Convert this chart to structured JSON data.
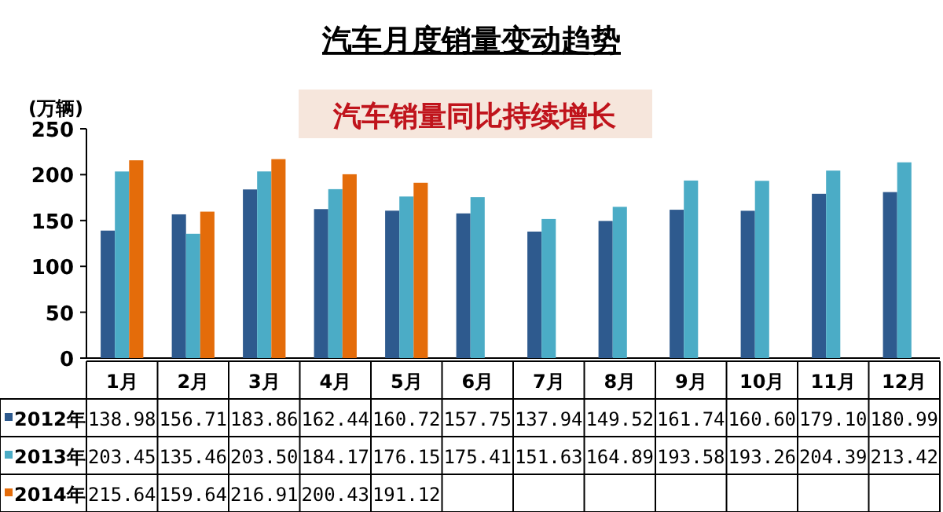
{
  "chart_data": {
    "type": "bar",
    "title": "汽车月度销量变动趋势",
    "subtitle": "汽车销量同比持续增长",
    "ylabel": "(万辆)",
    "categories": [
      "1月",
      "2月",
      "3月",
      "4月",
      "5月",
      "6月",
      "7月",
      "8月",
      "9月",
      "10月",
      "11月",
      "12月"
    ],
    "series": [
      {
        "name": "2012年",
        "color": "#2e5a8e",
        "values": [
          138.98,
          156.71,
          183.86,
          162.44,
          160.72,
          157.75,
          137.94,
          149.52,
          161.74,
          160.6,
          179.1,
          180.99
        ],
        "value_labels": [
          "138.98",
          "156.71",
          "183.86",
          "162.44",
          "160.72",
          "157.75",
          "137.94",
          "149.52",
          "161.74",
          "160.60",
          "179.10",
          "180.99"
        ]
      },
      {
        "name": "2013年",
        "color": "#4bacc6",
        "values": [
          203.45,
          135.46,
          203.5,
          184.17,
          176.15,
          175.41,
          151.63,
          164.89,
          193.58,
          193.26,
          204.39,
          213.42
        ],
        "value_labels": [
          "203.45",
          "135.46",
          "203.50",
          "184.17",
          "176.15",
          "175.41",
          "151.63",
          "164.89",
          "193.58",
          "193.26",
          "204.39",
          "213.42"
        ]
      },
      {
        "name": "2014年",
        "color": "#e46c0a",
        "values": [
          215.64,
          159.64,
          216.91,
          200.43,
          191.12,
          null,
          null,
          null,
          null,
          null,
          null,
          null
        ],
        "value_labels": [
          "215.64",
          "159.64",
          "216.91",
          "200.43",
          "191.12",
          null,
          null,
          null,
          null,
          null,
          null,
          null
        ]
      }
    ],
    "ylim": [
      0,
      250
    ],
    "yticks": [
      0,
      50,
      100,
      150,
      200,
      250
    ],
    "grid": false,
    "legend": "bottom left"
  }
}
